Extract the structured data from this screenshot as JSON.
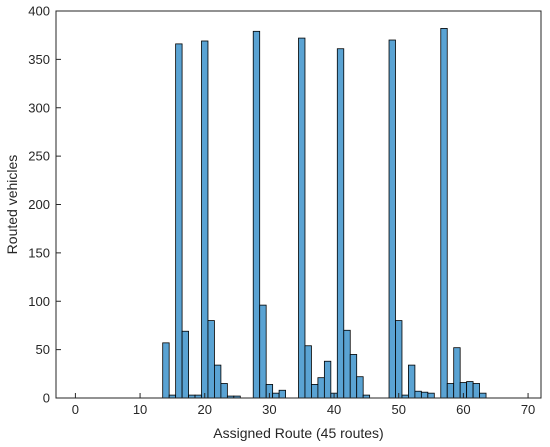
{
  "chart_data": {
    "type": "bar",
    "title": "",
    "xlabel": "Assigned Route (45 routes)",
    "ylabel": "Routed vehicles",
    "xlim": [
      -3,
      72
    ],
    "ylim": [
      0,
      400
    ],
    "xticks": [
      "0",
      "10",
      "20",
      "30",
      "40",
      "50",
      "60",
      "70"
    ],
    "yticks": [
      "0",
      "50",
      "100",
      "150",
      "200",
      "250",
      "300",
      "350",
      "400"
    ],
    "grid": false,
    "bar_color": "#5aa3d3",
    "bar_edge_color": "#000000",
    "x": [
      14,
      15,
      16,
      17,
      18,
      19,
      20,
      21,
      22,
      23,
      24,
      25,
      28,
      29,
      30,
      31,
      32,
      35,
      36,
      37,
      38,
      39,
      40,
      41,
      42,
      43,
      44,
      45,
      49,
      50,
      51,
      52,
      53,
      54,
      55,
      57,
      58,
      59,
      60,
      61,
      62,
      63
    ],
    "values": [
      57,
      3,
      366,
      69,
      3,
      3,
      369,
      80,
      34,
      15,
      2,
      2,
      379,
      96,
      14,
      5,
      8,
      372,
      54,
      14,
      21,
      38,
      5,
      361,
      70,
      45,
      22,
      3,
      370,
      80,
      3,
      34,
      7,
      6,
      5,
      382,
      15,
      52,
      16,
      17,
      15,
      5
    ]
  }
}
